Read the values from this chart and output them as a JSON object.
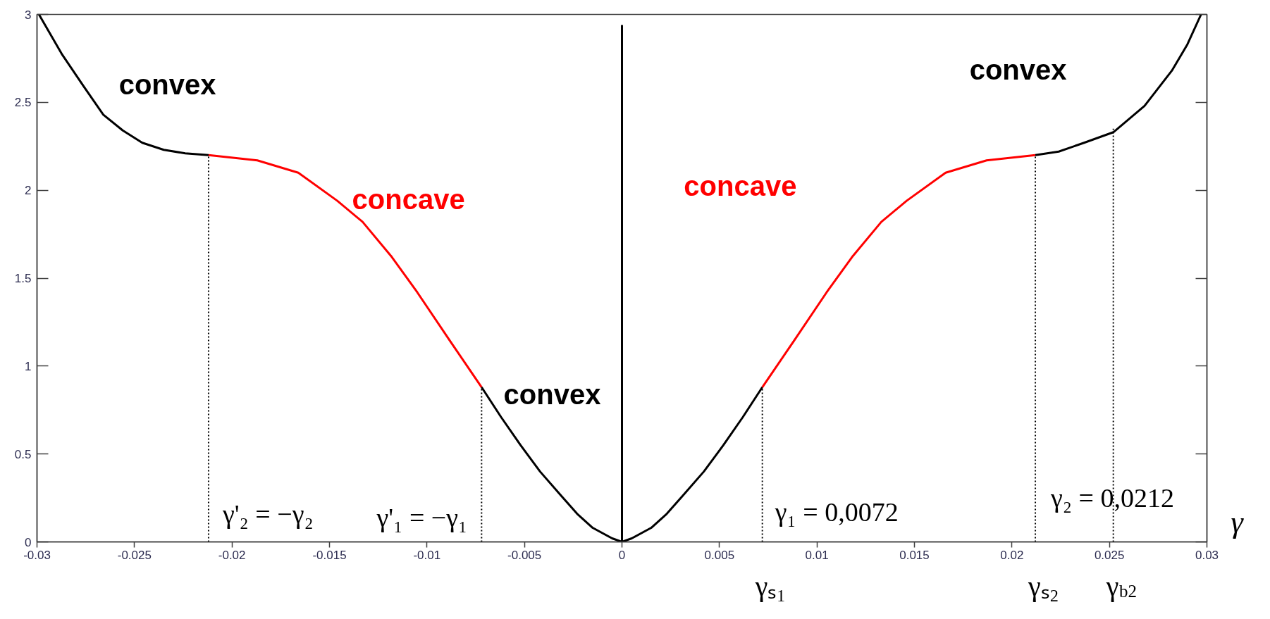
{
  "chart_data": {
    "type": "line",
    "xlabel": "γ",
    "xlim": [
      -0.03,
      0.03
    ],
    "ylim": [
      0,
      3
    ],
    "xticks": [
      -0.03,
      -0.025,
      -0.02,
      -0.015,
      -0.01,
      -0.005,
      0,
      0.005,
      0.01,
      0.015,
      0.02,
      0.025,
      0.03
    ],
    "yticks": [
      0,
      0.5,
      1,
      1.5,
      2,
      2.5,
      3
    ],
    "series": [
      {
        "name": "convex",
        "color": "#000000",
        "x": [
          -0.0299,
          -0.0287,
          -0.0276,
          -0.0266,
          -0.0256,
          -0.0246,
          -0.0235,
          -0.0224,
          -0.0212
        ],
        "values": [
          3.0,
          2.77,
          2.59,
          2.43,
          2.34,
          2.27,
          2.23,
          2.21,
          2.2
        ]
      },
      {
        "name": "concave",
        "color": "#ff0000",
        "x": [
          -0.0212,
          -0.0187,
          -0.0166,
          -0.0146,
          -0.0133,
          -0.0118,
          -0.0105,
          -0.0088,
          -0.0072
        ],
        "values": [
          2.2,
          2.17,
          2.1,
          1.94,
          1.82,
          1.62,
          1.42,
          1.14,
          0.88
        ]
      },
      {
        "name": "convex",
        "color": "#000000",
        "x": [
          -0.0072,
          -0.0062,
          -0.0052,
          -0.0042,
          -0.0031,
          -0.0023,
          -0.0015,
          -0.0005,
          0,
          0.0005,
          0.0015,
          0.0023,
          0.0031,
          0.0042,
          0.0052,
          0.0062,
          0.0072
        ],
        "values": [
          0.88,
          0.71,
          0.55,
          0.4,
          0.26,
          0.16,
          0.08,
          0.02,
          0,
          0.02,
          0.08,
          0.16,
          0.26,
          0.4,
          0.55,
          0.71,
          0.88
        ]
      },
      {
        "name": "concave",
        "color": "#ff0000",
        "x": [
          0.0072,
          0.0088,
          0.0105,
          0.0118,
          0.0133,
          0.0146,
          0.0166,
          0.0187,
          0.0212
        ],
        "values": [
          0.88,
          1.14,
          1.42,
          1.62,
          1.82,
          1.94,
          2.1,
          2.17,
          2.2
        ]
      },
      {
        "name": "convex",
        "color": "#000000",
        "x": [
          0.0212,
          0.0224,
          0.0237,
          0.0252,
          0.0268,
          0.0282,
          0.029,
          0.0297
        ],
        "values": [
          2.2,
          2.22,
          2.27,
          2.33,
          2.48,
          2.68,
          2.83,
          3.0
        ]
      },
      {
        "color": "#000000",
        "x": [
          0,
          0
        ],
        "values": [
          0,
          2.94
        ]
      },
      {
        "color": "#000000",
        "x": [
          -0.0212,
          -0.0212
        ],
        "values": [
          0,
          2.2
        ],
        "line_style": "dotted"
      },
      {
        "color": "#000000",
        "x": [
          -0.0072,
          -0.0072
        ],
        "values": [
          0,
          0.88
        ],
        "line_style": "dotted"
      },
      {
        "color": "#000000",
        "x": [
          0.0072,
          0.0072
        ],
        "values": [
          0,
          0.88
        ],
        "line_style": "dotted"
      },
      {
        "color": "#000000",
        "x": [
          0.0212,
          0.0212
        ],
        "values": [
          0,
          2.2
        ],
        "line_style": "dotted"
      },
      {
        "color": "#000000",
        "x": [
          0.0252,
          0.0252
        ],
        "values": [
          0,
          2.35
        ],
        "line_style": "dotted"
      }
    ],
    "annotations": [
      {
        "text": "γ'₂ = −γ₂",
        "x": -0.0212,
        "y": 0.16
      },
      {
        "text": "γ'₁ = −γ₁",
        "x": -0.0072,
        "y": 0.14
      },
      {
        "text": "γ₁ = 0,0072",
        "x": 0.0072,
        "y": 0.17
      },
      {
        "text": "γ₂ = 0,0212",
        "x": 0.0212,
        "y": 0.25
      },
      {
        "text": "γₛ₁",
        "x": 0.0072,
        "y": 0
      },
      {
        "text": "γₛ₂",
        "x": 0.0212,
        "y": 0
      },
      {
        "text": "γ$_{b2}$",
        "x": 0.0252,
        "y": 0
      }
    ]
  }
}
